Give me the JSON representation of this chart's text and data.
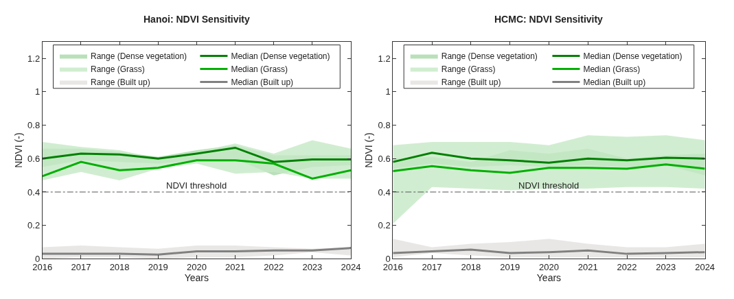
{
  "chart_data": [
    {
      "type": "line",
      "title": "Hanoi: NDVI Sensitivity",
      "xlabel": "Years",
      "ylabel": "NDVI (-)",
      "x": [
        2016,
        2017,
        2018,
        2019,
        2020,
        2021,
        2022,
        2023,
        2024
      ],
      "xlim": [
        2016,
        2024
      ],
      "xticks": [
        2016,
        2017,
        2018,
        2019,
        2020,
        2021,
        2022,
        2023,
        2024
      ],
      "ylim": [
        0,
        1.3
      ],
      "yticks": [
        0,
        0.2,
        0.4,
        0.6,
        0.8,
        1,
        1.2
      ],
      "legend": "top",
      "ref_lines": [
        {
          "axis": "y",
          "value": 0.4,
          "label": "NDVI threshold",
          "color": "#555555",
          "line_style": "dashdot"
        }
      ],
      "series": [
        {
          "type": "area",
          "name": "Range (Dense vegetation)",
          "color": "#a9d8a9",
          "values": [
            null,
            null,
            null,
            null,
            null,
            null,
            null,
            null,
            null
          ],
          "lower": [
            0.55,
            0.59,
            0.58,
            0.57,
            0.59,
            0.6,
            0.5,
            0.55,
            0.56
          ],
          "upper": [
            0.66,
            0.66,
            0.64,
            0.61,
            0.65,
            0.68,
            0.62,
            0.62,
            0.62
          ]
        },
        {
          "name": "Median (Dense vegetation)",
          "color": "#008000",
          "values": [
            0.6,
            0.63,
            0.625,
            0.6,
            0.63,
            0.665,
            0.58,
            0.595,
            0.595
          ]
        },
        {
          "type": "area",
          "name": "Range (Grass)",
          "color": "#c6e8c6",
          "values": [
            null,
            null,
            null,
            null,
            null,
            null,
            null,
            null,
            null
          ],
          "lower": [
            0.47,
            0.52,
            0.47,
            0.54,
            0.57,
            0.51,
            0.52,
            0.48,
            0.48
          ],
          "upper": [
            0.7,
            0.67,
            0.65,
            0.6,
            0.64,
            0.69,
            0.63,
            0.71,
            0.66
          ]
        },
        {
          "name": "Median (Grass)",
          "color": "#00b000",
          "values": [
            0.495,
            0.58,
            0.53,
            0.545,
            0.59,
            0.59,
            0.57,
            0.48,
            0.53
          ]
        },
        {
          "type": "area",
          "name": "Range (Built up)",
          "color": "#e3e1df",
          "values": [
            null,
            null,
            null,
            null,
            null,
            null,
            null,
            null,
            null
          ],
          "lower": [
            0.0,
            0.01,
            0.01,
            0.0,
            0.01,
            0.01,
            0.02,
            0.04,
            0.02
          ],
          "upper": [
            0.07,
            0.08,
            0.07,
            0.06,
            0.08,
            0.08,
            0.07,
            0.06,
            0.07
          ]
        },
        {
          "name": "Median (Built up)",
          "color": "#808080",
          "values": [
            0.03,
            0.03,
            0.03,
            0.025,
            0.045,
            0.045,
            0.05,
            0.05,
            0.065
          ]
        }
      ]
    },
    {
      "type": "line",
      "title": "HCMC: NDVI Sensitivity",
      "xlabel": "Years",
      "ylabel": "NDVI (-)",
      "x": [
        2016,
        2017,
        2018,
        2019,
        2020,
        2021,
        2022,
        2023,
        2024
      ],
      "xlim": [
        2016,
        2024
      ],
      "xticks": [
        2016,
        2017,
        2018,
        2019,
        2020,
        2021,
        2022,
        2023,
        2024
      ],
      "ylim": [
        0,
        1.3
      ],
      "yticks": [
        0,
        0.2,
        0.4,
        0.6,
        0.8,
        1,
        1.2
      ],
      "legend": "top",
      "ref_lines": [
        {
          "axis": "y",
          "value": 0.4,
          "label": "NDVI threshold",
          "color": "#555555",
          "line_style": "dashdot"
        }
      ],
      "series": [
        {
          "type": "area",
          "name": "Range (Dense vegetation)",
          "color": "#a9d8a9",
          "values": [
            null,
            null,
            null,
            null,
            null,
            null,
            null,
            null,
            null
          ],
          "lower": [
            0.54,
            0.57,
            0.55,
            0.56,
            0.55,
            0.56,
            0.55,
            0.56,
            0.5
          ],
          "upper": [
            0.6,
            0.61,
            0.58,
            0.65,
            0.63,
            0.66,
            0.6,
            0.62,
            0.63
          ]
        },
        {
          "name": "Median (Dense vegetation)",
          "color": "#008000",
          "values": [
            0.58,
            0.635,
            0.6,
            0.59,
            0.575,
            0.6,
            0.59,
            0.605,
            0.6
          ]
        },
        {
          "type": "area",
          "name": "Range (Grass)",
          "color": "#c6e8c6",
          "values": [
            null,
            null,
            null,
            null,
            null,
            null,
            null,
            null,
            null
          ],
          "lower": [
            0.21,
            0.43,
            0.42,
            0.41,
            0.42,
            0.42,
            0.43,
            0.43,
            0.42
          ],
          "upper": [
            0.68,
            0.7,
            0.7,
            0.7,
            0.68,
            0.74,
            0.73,
            0.74,
            0.71
          ]
        },
        {
          "name": "Median (Grass)",
          "color": "#00b000",
          "values": [
            0.525,
            0.555,
            0.53,
            0.515,
            0.545,
            0.545,
            0.54,
            0.565,
            0.54
          ]
        },
        {
          "type": "area",
          "name": "Range (Built up)",
          "color": "#e3e1df",
          "values": [
            null,
            null,
            null,
            null,
            null,
            null,
            null,
            null,
            null
          ],
          "lower": [
            0.01,
            0.035,
            0.02,
            0.01,
            0.01,
            0.01,
            0.01,
            0.01,
            0.01
          ],
          "upper": [
            0.12,
            0.07,
            0.09,
            0.1,
            0.12,
            0.09,
            0.07,
            0.07,
            0.09
          ]
        },
        {
          "name": "Median (Built up)",
          "color": "#808080",
          "values": [
            0.035,
            0.045,
            0.055,
            0.035,
            0.04,
            0.05,
            0.03,
            0.035,
            0.04
          ]
        }
      ]
    }
  ]
}
